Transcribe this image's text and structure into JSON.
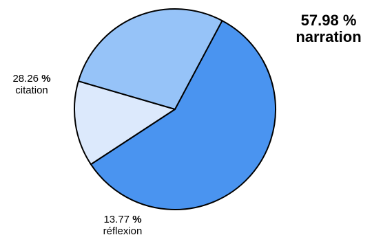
{
  "chart_data": {
    "type": "pie",
    "title": "",
    "slices": [
      {
        "label": "narration",
        "value": 57.98,
        "value_text": "57.98",
        "percent_sign": "%",
        "color": "#4a94f0"
      },
      {
        "label": "réflexion",
        "value": 13.77,
        "value_text": "13.77",
        "percent_sign": "%",
        "color": "#dce9fc"
      },
      {
        "label": "citation",
        "value": 28.26,
        "value_text": "28.26",
        "percent_sign": "%",
        "color": "#96c3f8"
      }
    ],
    "start_angle_deg": 28,
    "direction": "clockwise",
    "edge_color": "#000000"
  }
}
